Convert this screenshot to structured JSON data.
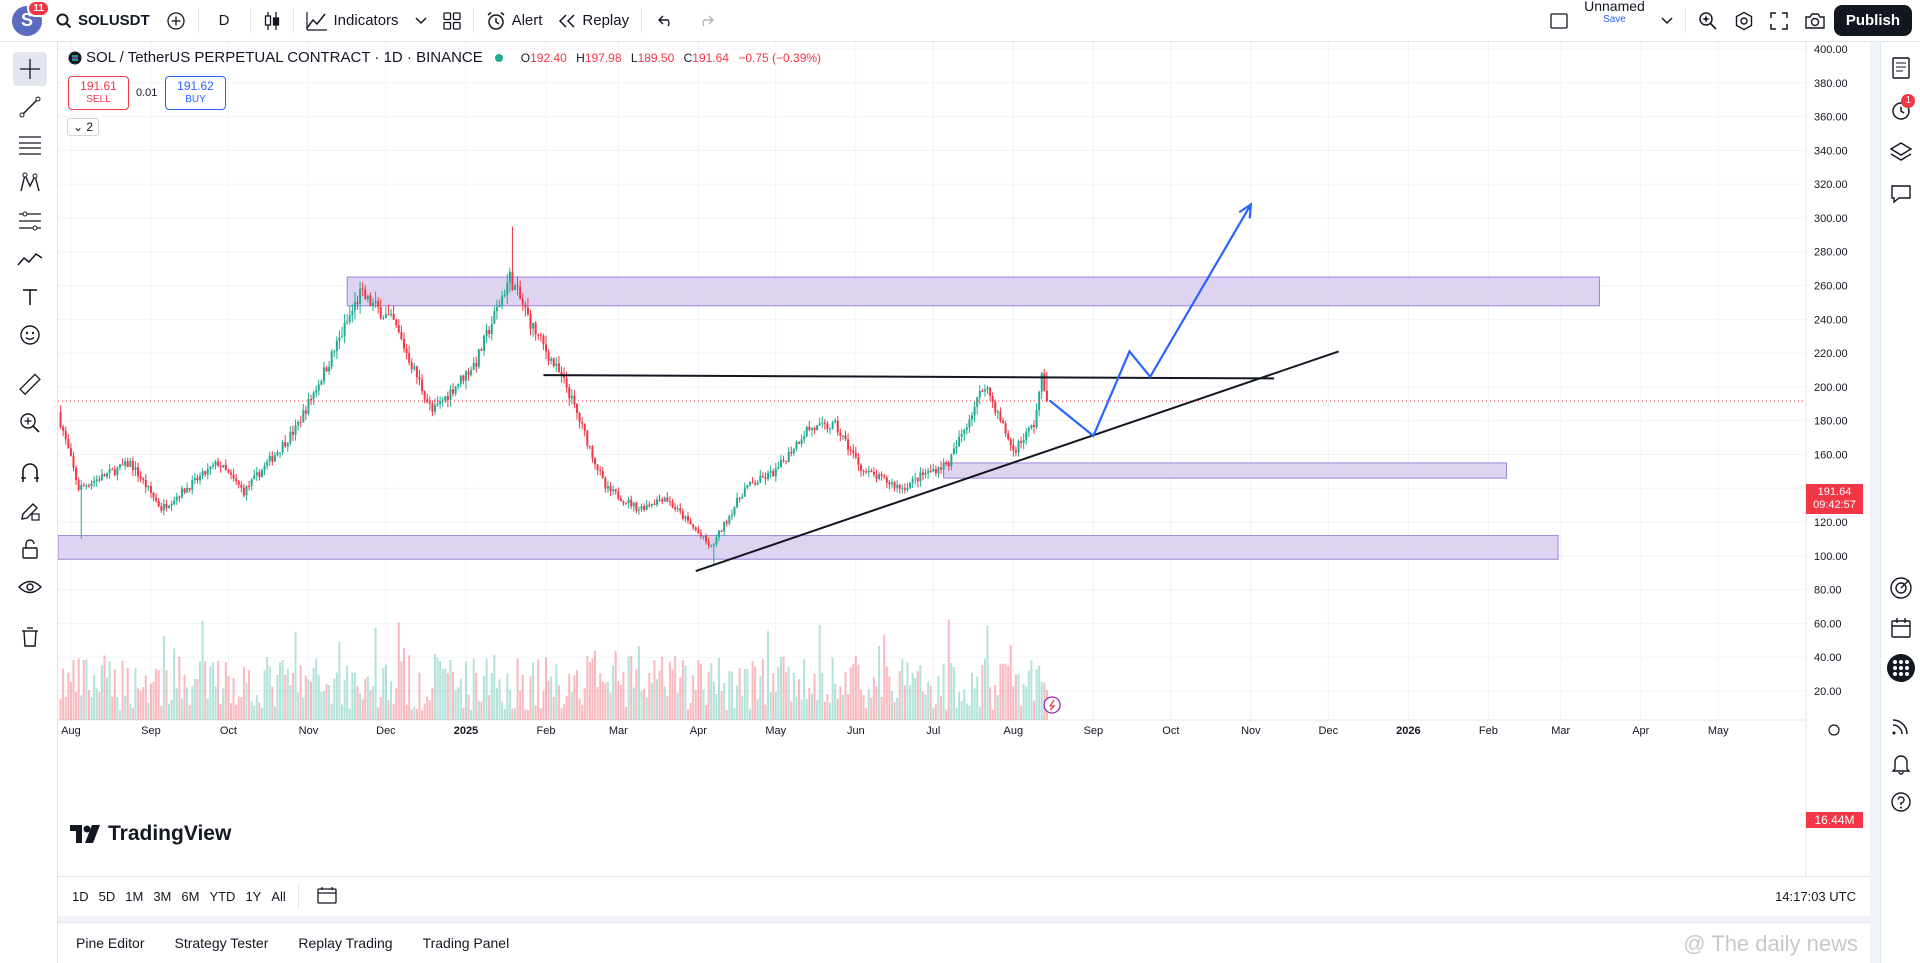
{
  "topbar": {
    "avatar_letter": "S",
    "avatar_badge": "11",
    "symbol": "SOLUSDT",
    "interval": "D",
    "indicators_label": "Indicators",
    "alert_label": "Alert",
    "replay_label": "Replay",
    "layout_name": "Unnamed",
    "save_label": "Save",
    "publish_label": "Publish"
  },
  "legend": {
    "title": "SOL / TetherUS PERPETUAL CONTRACT · 1D · BINANCE",
    "o_label": "O",
    "o": "192.40",
    "h_label": "H",
    "h": "197.98",
    "l_label": "L",
    "l": "189.50",
    "c_label": "C",
    "c": "191.64",
    "change": "−0.75 (−0.39%)",
    "sell_price": "191.61",
    "sell_label": "SELL",
    "spread": "0.01",
    "buy_price": "191.62",
    "buy_label": "BUY",
    "collapse_count": "2"
  },
  "price_badge": {
    "price": "191.64",
    "countdown": "09:42:57"
  },
  "volume_badge": "16.44M",
  "right_badge": "1",
  "logo_text": "TradingView",
  "timeframes": [
    "1D",
    "5D",
    "1M",
    "3M",
    "6M",
    "YTD",
    "1Y",
    "All"
  ],
  "utc_time": "14:17:03 UTC",
  "bottom_tabs": [
    "Pine Editor",
    "Strategy Tester",
    "Replay Trading",
    "Trading Panel"
  ],
  "watermark": "@ The daily news",
  "colors": {
    "up": "#22ab94",
    "down": "#f23645",
    "zone": "#d8ccf0",
    "zone_border": "#9c84d8",
    "projection": "#2962ff",
    "trendline": "#131722"
  },
  "chart_data": {
    "type": "candlestick",
    "symbol": "SOLUSDT",
    "timeframe": "1D",
    "y_ticks": [
      20,
      40,
      60,
      80,
      100,
      120,
      140,
      160,
      180,
      200,
      220,
      240,
      260,
      280,
      300,
      320,
      340,
      360,
      380,
      400
    ],
    "ylim": [
      20,
      400
    ],
    "x_tick_labels": [
      "Aug",
      "Sep",
      "Oct",
      "Nov",
      "Dec",
      "2025",
      "Feb",
      "Mar",
      "Apr",
      "May",
      "Jun",
      "Jul",
      "Aug",
      "Sep",
      "Oct",
      "Nov",
      "Dec",
      "2026",
      "Feb",
      "Mar",
      "Apr",
      "May"
    ],
    "x_tick_dates": [
      "2024-08-01",
      "2024-09-01",
      "2024-10-01",
      "2024-11-01",
      "2024-12-01",
      "2025-01-01",
      "2025-02-01",
      "2025-03-01",
      "2025-04-01",
      "2025-05-01",
      "2025-06-01",
      "2025-07-01",
      "2025-08-01",
      "2025-09-01",
      "2025-10-01",
      "2025-11-01",
      "2025-12-01",
      "2026-01-01",
      "2026-02-01",
      "2026-03-01",
      "2026-04-01",
      "2026-05-01"
    ],
    "xlim": [
      "2024-07-27",
      "2026-06-04"
    ],
    "price_path": [
      [
        "2024-07-28",
        185
      ],
      [
        "2024-08-05",
        140
      ],
      [
        "2024-08-25",
        155
      ],
      [
        "2024-09-06",
        128
      ],
      [
        "2024-09-28",
        155
      ],
      [
        "2024-10-08",
        138
      ],
      [
        "2024-10-28",
        175
      ],
      [
        "2024-11-10",
        215
      ],
      [
        "2024-11-22",
        255
      ],
      [
        "2024-12-05",
        238
      ],
      [
        "2024-12-20",
        185
      ],
      [
        "2025-01-06",
        215
      ],
      [
        "2025-01-19",
        265
      ],
      [
        "2025-01-28",
        235
      ],
      [
        "2025-02-10",
        200
      ],
      [
        "2025-02-25",
        140
      ],
      [
        "2025-03-10",
        128
      ],
      [
        "2025-03-20",
        135
      ],
      [
        "2025-04-07",
        105
      ],
      [
        "2025-04-20",
        140
      ],
      [
        "2025-05-02",
        150
      ],
      [
        "2025-05-14",
        175
      ],
      [
        "2025-05-25",
        177
      ],
      [
        "2025-06-05",
        150
      ],
      [
        "2025-06-20",
        140
      ],
      [
        "2025-06-28",
        148
      ],
      [
        "2025-07-08",
        155
      ],
      [
        "2025-07-22",
        202
      ],
      [
        "2025-08-02",
        162
      ],
      [
        "2025-08-10",
        178
      ],
      [
        "2025-08-13",
        205
      ],
      [
        "2025-08-15",
        191.64
      ]
    ],
    "last_close": 191.64,
    "zones": [
      {
        "from": "2024-11-16",
        "to": "2026-03-16",
        "high": 265,
        "low": 248
      },
      {
        "from": "2025-07-05",
        "to": "2026-02-08",
        "high": 155,
        "low": 146
      },
      {
        "from": "2024-07-27",
        "to": "2026-02-28",
        "high": 112,
        "low": 98
      }
    ],
    "lines": [
      {
        "name": "resistance",
        "from": [
          "2025-01-31",
          207
        ],
        "to": [
          "2025-11-10",
          205
        ]
      },
      {
        "name": "rising-trendline",
        "from": [
          "2025-03-31",
          91
        ],
        "to": [
          "2025-12-05",
          221
        ]
      }
    ],
    "projection_path": [
      [
        "2025-08-15",
        192
      ],
      [
        "2025-09-01",
        171
      ],
      [
        "2025-09-15",
        221
      ],
      [
        "2025-09-23",
        206
      ],
      [
        "2025-11-01",
        308
      ]
    ],
    "volume_max_m": 90
  }
}
